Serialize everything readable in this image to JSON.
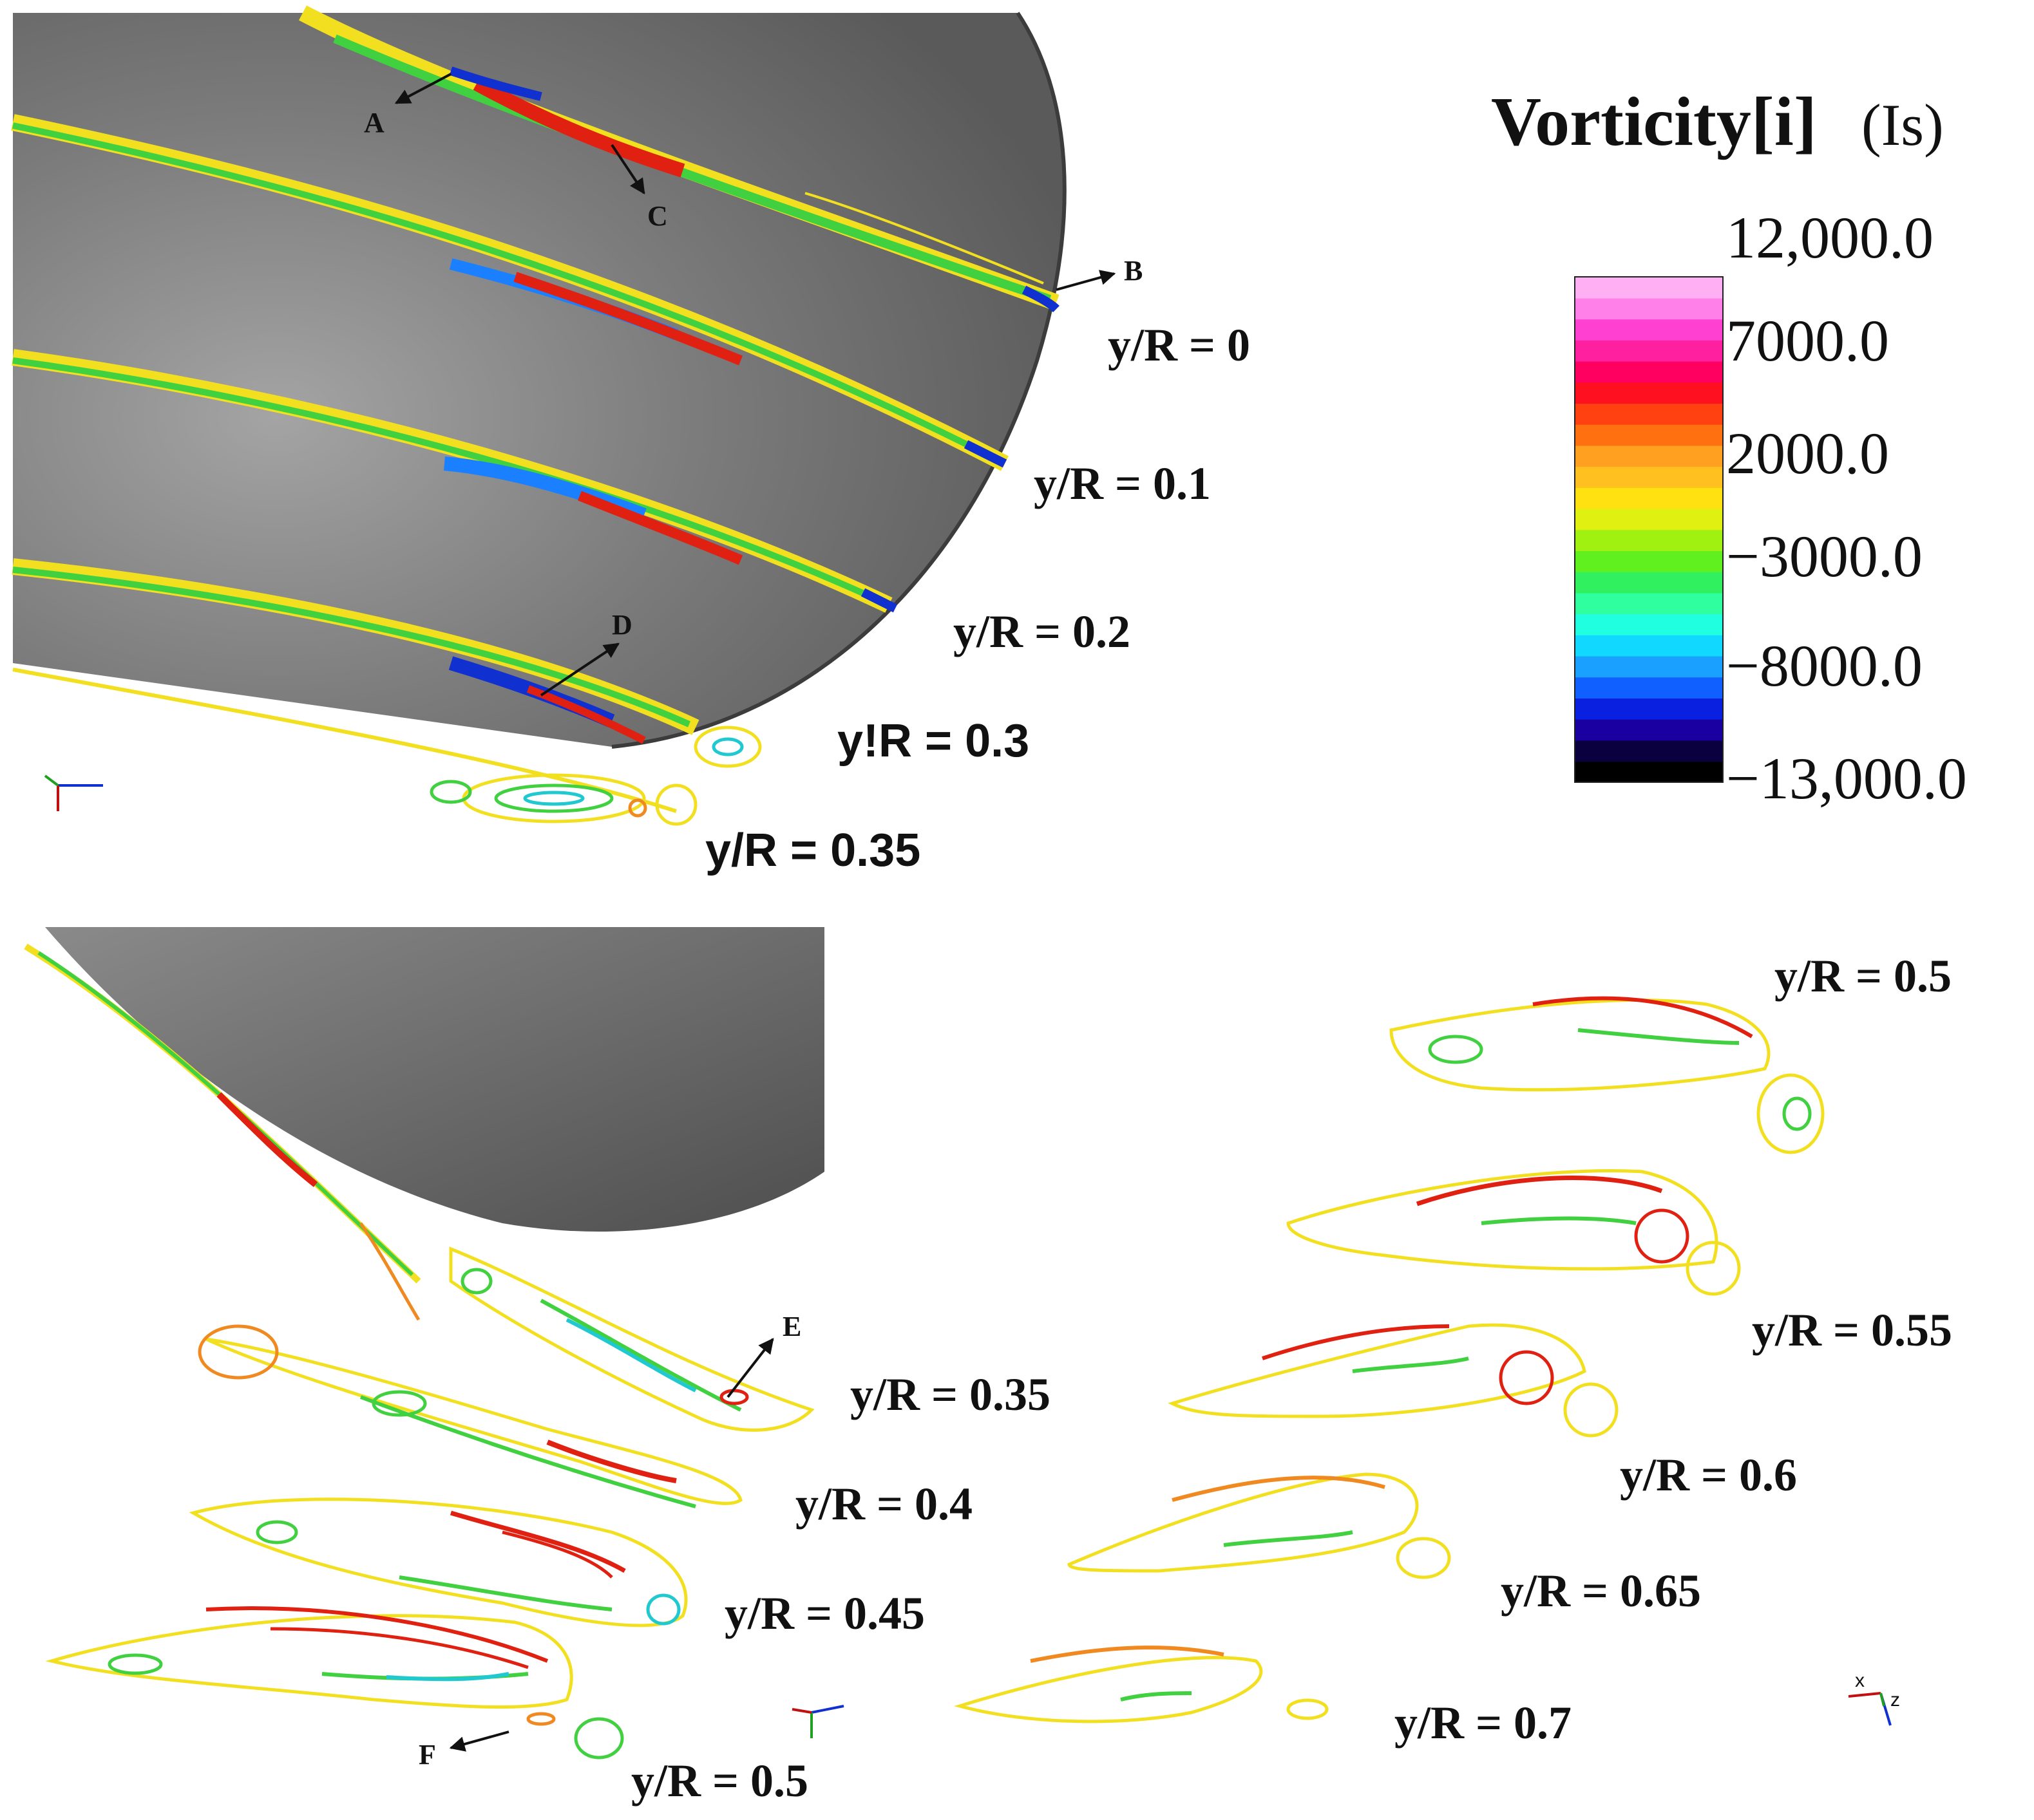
{
  "colorbar": {
    "title": "Vorticity[i]",
    "unit": "(Is)",
    "ticks": [
      "12,000.0",
      "7000.0",
      "2000.0",
      "−3000.0",
      "−8000.0",
      "−13,000.0"
    ],
    "colors": [
      "#000000",
      "#0a0040",
      "#1a00a0",
      "#0a20e0",
      "#1060ff",
      "#1aa0ff",
      "#10d8ff",
      "#20ffe0",
      "#30ffa0",
      "#30f060",
      "#60f020",
      "#a0f010",
      "#e0f010",
      "#ffe010",
      "#ffc020",
      "#ffa020",
      "#ff7010",
      "#ff4010",
      "#ff1020",
      "#ff0060",
      "#ff20a0",
      "#ff40d0",
      "#ff80e8",
      "#ffb0f4"
    ]
  },
  "top_panel": {
    "section_labels": [
      "y/R = 0",
      "y/R = 0.1",
      "y/R = 0.2",
      "y!R = 0.3",
      "y/R = 0.35"
    ],
    "points": [
      "A",
      "C",
      "B",
      "D"
    ]
  },
  "bottom_panel": {
    "left_labels": [
      "y/R = 0.35",
      "y/R = 0.4",
      "y/R = 0.45",
      "y/R = 0.5"
    ],
    "right_labels": [
      "y/R = 0.5",
      "y/R = 0.55",
      "y/R = 0.6",
      "y/R = 0.65",
      "y/R = 0.7"
    ],
    "points": [
      "E",
      "F"
    ]
  },
  "axis_triad_labels": [
    "x",
    "z"
  ],
  "contour_palette": {
    "yellow": "#f2e020",
    "orange": "#f08a20",
    "red": "#e02010",
    "green": "#40d040",
    "cyan": "#20c8d0",
    "blue": "#1030d0"
  }
}
